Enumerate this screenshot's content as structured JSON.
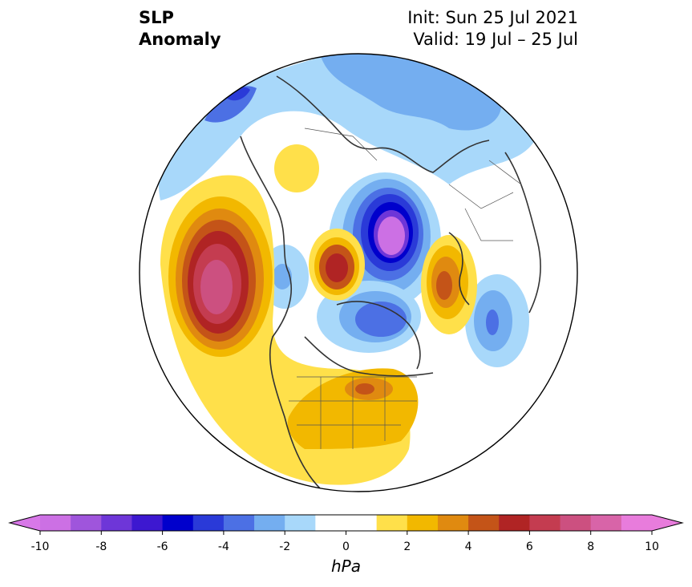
{
  "title": {
    "line1": "SLP",
    "line2": "Anomaly",
    "init": "Init: Sun 25 Jul 2021",
    "valid": "Valid: 19 Jul – 25 Jul"
  },
  "colorbar": {
    "unit": "hPa",
    "levels": [
      -10,
      -9,
      -8,
      -7,
      -6,
      -5,
      -4,
      -3,
      -2,
      -1,
      1,
      2,
      3,
      4,
      5,
      6,
      7,
      8,
      9,
      10
    ],
    "colors": [
      "#cc70e4",
      "#9f55dc",
      "#6e36d8",
      "#3d18d0",
      "#0000cc",
      "#2a3ad8",
      "#4c70e4",
      "#74aef0",
      "#a8d8fa",
      "#ffffff",
      "#ffe04a",
      "#f2b800",
      "#e08a10",
      "#c45418",
      "#b02424",
      "#c43c50",
      "#cc5080",
      "#d864a8",
      "#e87cdc"
    ],
    "under_color": "#d878e8",
    "over_color": "#e87cdc",
    "tick_labels": [
      "-10",
      "-8",
      "-6",
      "-4",
      "-2",
      "0",
      "2",
      "4",
      "6",
      "8",
      "10"
    ]
  },
  "map": {
    "projection": "north-polar-stereographic"
  }
}
